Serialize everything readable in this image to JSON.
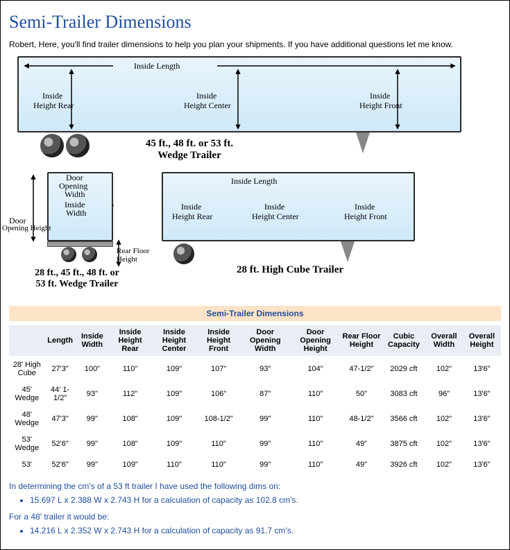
{
  "title": "Semi-Trailer Dimensions",
  "intro": "Robert,  Here, you'll find trailer dimensions to help you plan your shipments. If you have additional questions let me know.",
  "diagram": {
    "top": {
      "caption_line1": "45 ft., 48 ft. or 53 ft.",
      "caption_line2": "Wedge Trailer",
      "labels": {
        "inside_length": "Inside Length",
        "height_rear_l1": "Inside",
        "height_rear_l2": "Height Rear",
        "height_center_l1": "Inside",
        "height_center_l2": "Height Center",
        "height_front_l1": "Inside",
        "height_front_l2": "Height Front"
      }
    },
    "rear": {
      "caption_line1": "28 ft., 45 ft., 48 ft. or",
      "caption_line2": "53 ft. Wedge Trailer",
      "labels": {
        "door_opening_width_l1": "Door",
        "door_opening_width_l2": "Opening",
        "door_opening_width_l3": "Width",
        "inside_width_l1": "Inside",
        "inside_width_l2": "Width",
        "door_opening_height_l1": "Door",
        "door_opening_height_l2": "Opening Height",
        "rear_floor_l1": "Rear Floor",
        "rear_floor_l2": "Height"
      }
    },
    "short": {
      "caption": "28 ft. High Cube Trailer",
      "labels": {
        "inside_length": "Inside Length",
        "height_rear_l1": "Inside",
        "height_rear_l2": "Height Rear",
        "height_center_l1": "Inside",
        "height_center_l2": "Height Center",
        "height_front_l1": "Inside",
        "height_front_l2": "Height Front"
      }
    },
    "colors": {
      "trailer_fill_top": "#e8f4fb",
      "trailer_fill_bottom": "#cfe9f8",
      "border": "#2a2a2a",
      "arrow": "#000000",
      "leg": "#888888"
    }
  },
  "table": {
    "title": "Semi-Trailer Dimensions",
    "columns": [
      "",
      "Length",
      "Inside Width",
      "Inside Height Rear",
      "Inside Height Center",
      "Inside Height Front",
      "Door Opening Width",
      "Door Opening Height",
      "Rear Floor Height",
      "Cubic Capacity",
      "Overall Width",
      "Overall Height"
    ],
    "rows": [
      [
        "28' High Cube",
        "27'3\"",
        "100\"",
        "110\"",
        "109\"",
        "107\"",
        "93\"",
        "104\"",
        "47-1/2\"",
        "2029 cft",
        "102\"",
        "13'6\""
      ],
      [
        "45' Wedge",
        "44' 1-1/2\"",
        "93\"",
        "112\"",
        "109\"",
        "106\"",
        "87\"",
        "110\"",
        "50\"",
        "3083 cft",
        "96\"",
        "13'6\""
      ],
      [
        "48' Wedge",
        "47'3\"",
        "99\"",
        "108\"",
        "109\"",
        "108-1/2\"",
        "99\"",
        "110\"",
        "48-1/2\"",
        "3566 cft",
        "102\"",
        "13'6\""
      ],
      [
        "53' Wedge",
        "52'6\"",
        "99\"",
        "108\"",
        "109\"",
        "110\"",
        "99\"",
        "110\"",
        "49\"",
        "3875 cft",
        "102\"",
        "13'6\""
      ],
      [
        "53'",
        "52'6\"",
        "99\"",
        "109\"",
        "110\"",
        "110\"",
        "99\"",
        "110\"",
        "49\"",
        "3926 cft",
        "102\"",
        "13'6\""
      ]
    ],
    "header_bg": "#e9eef5",
    "title_bg": "#fde3c7",
    "title_color": "#1f4e9c"
  },
  "notes": {
    "line1": "In determining the cm's of a 53 ft trailer I have used the following dims on:",
    "bullet1": "15.697 L x 2.388 W x 2.743 H for a calculation of capacity as 102.8 cm's.",
    "line2": "For a 48' trailer it would be:",
    "bullet2": "14.216 L x 2.352 W x 2.743 H for a calculation of capacity as 91.7 cm's.",
    "color": "#1f4e9c"
  }
}
